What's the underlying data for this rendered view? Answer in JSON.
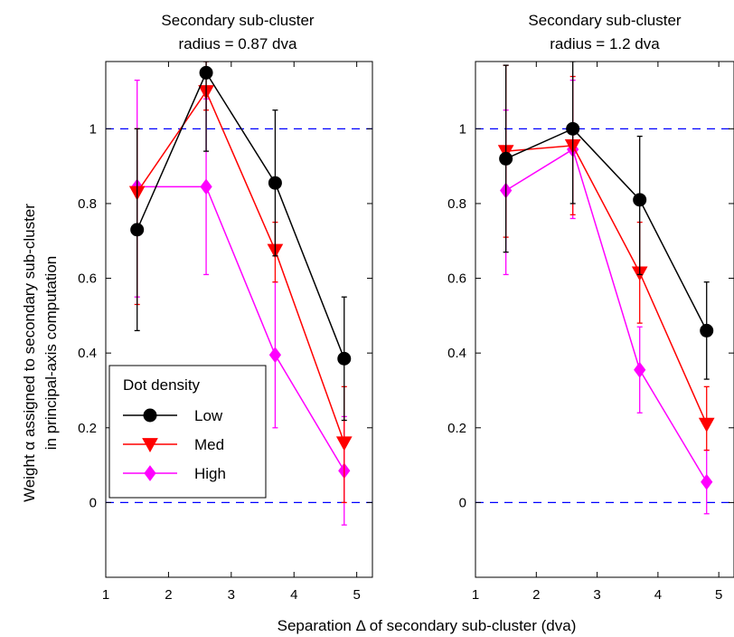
{
  "figure": {
    "ylabel_line1": "Weight α assigned to secondary sub-cluster",
    "ylabel_line2": "in principal-axis computation",
    "xlabel": "Separation Δ of secondary sub-cluster (dva)"
  },
  "legend": {
    "title": "Dot density",
    "placement": "lower-left",
    "entries": [
      {
        "label": "Low",
        "color": "#000000",
        "marker": "circle"
      },
      {
        "label": "Med",
        "color": "#ff0000",
        "marker": "triangle-down"
      },
      {
        "label": "High",
        "color": "#ff00ff",
        "marker": "diamond"
      }
    ]
  },
  "chart_data": [
    {
      "type": "line",
      "title_line1": "Secondary sub-cluster",
      "title_line2": "radius = 0.87 dva",
      "x_ticks": [
        "1",
        "2",
        "3",
        "4",
        "5"
      ],
      "y_ticks": [
        "0",
        "0.2",
        "0.4",
        "0.6",
        "0.8",
        "1"
      ],
      "xlim": [
        1,
        5.25
      ],
      "ylim": [
        -0.2,
        1.18
      ],
      "reference_lines": [
        0,
        1
      ],
      "series": [
        {
          "name": "Low",
          "color": "#000000",
          "marker": "circle",
          "x": [
            1.5,
            2.6,
            3.7,
            4.8
          ],
          "y": [
            0.73,
            1.15,
            0.855,
            0.385
          ],
          "err_low": [
            0.46,
            0.94,
            0.66,
            0.22
          ],
          "err_high": [
            1.0,
            1.18,
            1.05,
            0.55
          ]
        },
        {
          "name": "Med",
          "color": "#ff0000",
          "marker": "triangle-down",
          "x": [
            1.5,
            2.6,
            3.7,
            4.8
          ],
          "y": [
            0.83,
            1.1,
            0.675,
            0.16
          ],
          "err_low": [
            0.53,
            1.05,
            0.59,
            0.0
          ],
          "err_high": [
            1.0,
            1.18,
            0.75,
            0.31
          ]
        },
        {
          "name": "High",
          "color": "#ff00ff",
          "marker": "diamond",
          "x": [
            1.5,
            2.6,
            3.7,
            4.8
          ],
          "y": [
            0.845,
            0.845,
            0.395,
            0.085
          ],
          "err_low": [
            0.55,
            0.61,
            0.2,
            -0.06
          ],
          "err_high": [
            1.13,
            1.08,
            0.59,
            0.23
          ]
        }
      ]
    },
    {
      "type": "line",
      "title_line1": "Secondary sub-cluster",
      "title_line2": "radius = 1.2 dva",
      "x_ticks": [
        "1",
        "2",
        "3",
        "4",
        "5"
      ],
      "y_ticks": [
        "0",
        "0.2",
        "0.4",
        "0.6",
        "0.8",
        "1"
      ],
      "xlim": [
        1,
        5.25
      ],
      "ylim": [
        -0.2,
        1.18
      ],
      "reference_lines": [
        0,
        1
      ],
      "series": [
        {
          "name": "Low",
          "color": "#000000",
          "marker": "circle",
          "x": [
            1.5,
            2.6,
            3.7,
            4.8
          ],
          "y": [
            0.92,
            1.0,
            0.81,
            0.46
          ],
          "err_low": [
            0.67,
            0.8,
            0.61,
            0.33
          ],
          "err_high": [
            1.17,
            1.18,
            0.98,
            0.59
          ]
        },
        {
          "name": "Med",
          "color": "#ff0000",
          "marker": "triangle-down",
          "x": [
            1.5,
            2.6,
            3.7,
            4.8
          ],
          "y": [
            0.94,
            0.955,
            0.615,
            0.21
          ],
          "err_low": [
            0.71,
            0.77,
            0.48,
            0.14
          ],
          "err_high": [
            1.17,
            1.14,
            0.75,
            0.31
          ]
        },
        {
          "name": "High",
          "color": "#ff00ff",
          "marker": "diamond",
          "x": [
            1.5,
            2.6,
            3.7,
            4.8
          ],
          "y": [
            0.835,
            0.945,
            0.355,
            0.055
          ],
          "err_low": [
            0.61,
            0.76,
            0.24,
            -0.03
          ],
          "err_high": [
            1.05,
            1.13,
            0.47,
            0.14
          ]
        }
      ]
    }
  ]
}
